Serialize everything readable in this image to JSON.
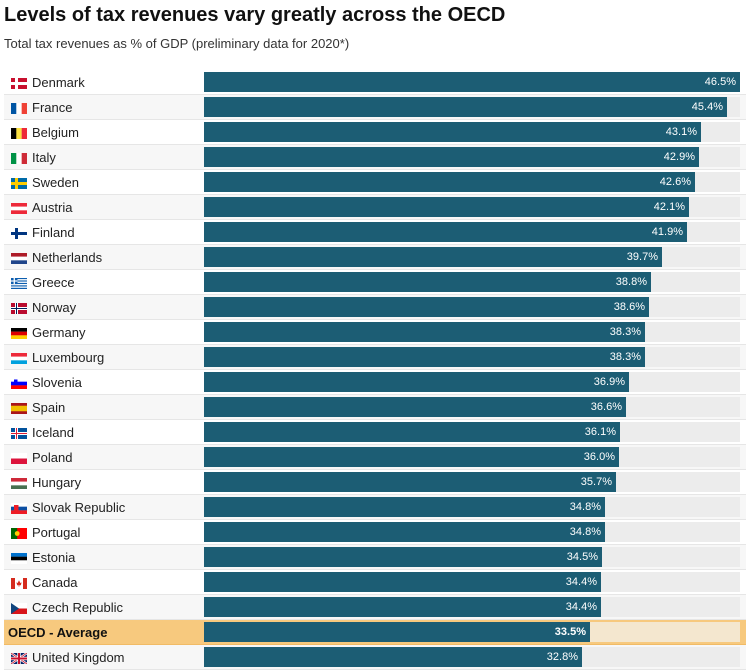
{
  "title": "Levels of tax revenues vary greatly across the OECD",
  "subtitle": "Total tax revenues as % of GDP (preliminary data for 2020*)",
  "colors": {
    "bar": "#1c5d74",
    "track": "#ececec",
    "highlight": "#f7c97e",
    "value_text": "#ffffff"
  },
  "chart_data": {
    "type": "bar",
    "orientation": "horizontal",
    "title": "Levels of tax revenues vary greatly across the OECD",
    "subtitle": "Total tax revenues as % of GDP (preliminary data for 2020*)",
    "xlim": [
      0,
      46.5
    ],
    "unit": "%",
    "categories": [
      "Denmark",
      "France",
      "Belgium",
      "Italy",
      "Sweden",
      "Austria",
      "Finland",
      "Netherlands",
      "Greece",
      "Norway",
      "Germany",
      "Luxembourg",
      "Slovenia",
      "Spain",
      "Iceland",
      "Poland",
      "Hungary",
      "Slovak Republic",
      "Portugal",
      "Estonia",
      "Canada",
      "Czech Republic",
      "OECD - Average",
      "United Kingdom"
    ],
    "values": [
      46.5,
      45.4,
      43.1,
      42.9,
      42.6,
      42.1,
      41.9,
      39.7,
      38.8,
      38.6,
      38.3,
      38.3,
      36.9,
      36.6,
      36.1,
      36.0,
      35.7,
      34.8,
      34.8,
      34.5,
      34.4,
      34.4,
      33.5,
      32.8
    ],
    "value_labels": [
      "46.5%",
      "45.4%",
      "43.1%",
      "42.9%",
      "42.6%",
      "42.1%",
      "41.9%",
      "39.7%",
      "38.8%",
      "38.6%",
      "38.3%",
      "38.3%",
      "36.9%",
      "36.6%",
      "36.1%",
      "36.0%",
      "35.7%",
      "34.8%",
      "34.8%",
      "34.5%",
      "34.4%",
      "34.4%",
      "33.5%",
      "32.8%"
    ],
    "flags": [
      "denmark",
      "france",
      "belgium",
      "italy",
      "sweden",
      "austria",
      "finland",
      "netherlands",
      "greece",
      "norway",
      "germany",
      "luxembourg",
      "slovenia",
      "spain",
      "iceland",
      "poland",
      "hungary",
      "slovakia",
      "portugal",
      "estonia",
      "canada",
      "czechia",
      "",
      "united-kingdom"
    ],
    "highlight": [
      "OECD - Average"
    ]
  }
}
